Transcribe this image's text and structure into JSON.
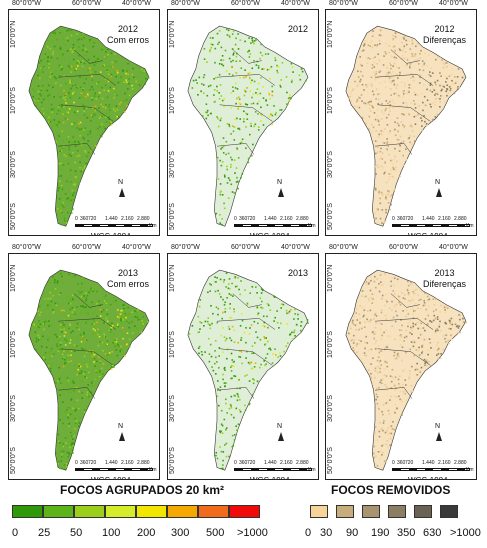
{
  "axes": {
    "top_labels": [
      "80°0'0\"W",
      "60°0'0\"W",
      "40°0'0\"W"
    ],
    "left_labels": [
      "10°0'0\"N",
      "10°0'0\"S",
      "30°0'0\"S",
      "50°0'0\"S"
    ]
  },
  "panels": [
    {
      "year": "2012",
      "subtitle": "Com erros",
      "type": "green",
      "density": 0.95
    },
    {
      "year": "2012",
      "subtitle": "",
      "type": "green",
      "density": 0.6
    },
    {
      "year": "2012",
      "subtitle": "Diferenças",
      "type": "tan",
      "density": 0.9
    },
    {
      "year": "2013",
      "subtitle": "Com erros",
      "type": "green",
      "density": 0.95
    },
    {
      "year": "2013",
      "subtitle": "",
      "type": "green",
      "density": 0.55
    },
    {
      "year": "2013",
      "subtitle": "Diferenças",
      "type": "tan",
      "density": 0.9
    }
  ],
  "scale_bar": {
    "labels": [
      "0",
      "360",
      "720",
      "1.440",
      "2.160",
      "2.880"
    ],
    "unit": "Km"
  },
  "north_label": "N",
  "crs": "WGS-1984",
  "legend_left": {
    "title": "FOCOS AGRUPADOS 20 km²",
    "colors": [
      "#2e9a0a",
      "#5cb31a",
      "#9ccf1a",
      "#d4ec2a",
      "#f2e600",
      "#f5a800",
      "#f26a1c",
      "#f00a0a"
    ],
    "labels": [
      "0",
      "25",
      "50",
      "100",
      "200",
      "300",
      "500",
      ">1000"
    ]
  },
  "legend_right": {
    "title": "FOCOS REMOVIDOS",
    "colors": [
      "#f7d49a",
      "#c8ad7c",
      "#a8946e",
      "#8c7e62",
      "#6a6252",
      "#3a3a3a"
    ],
    "labels": [
      "0",
      "30",
      "90",
      "190",
      "350",
      "630",
      ">1000"
    ]
  }
}
